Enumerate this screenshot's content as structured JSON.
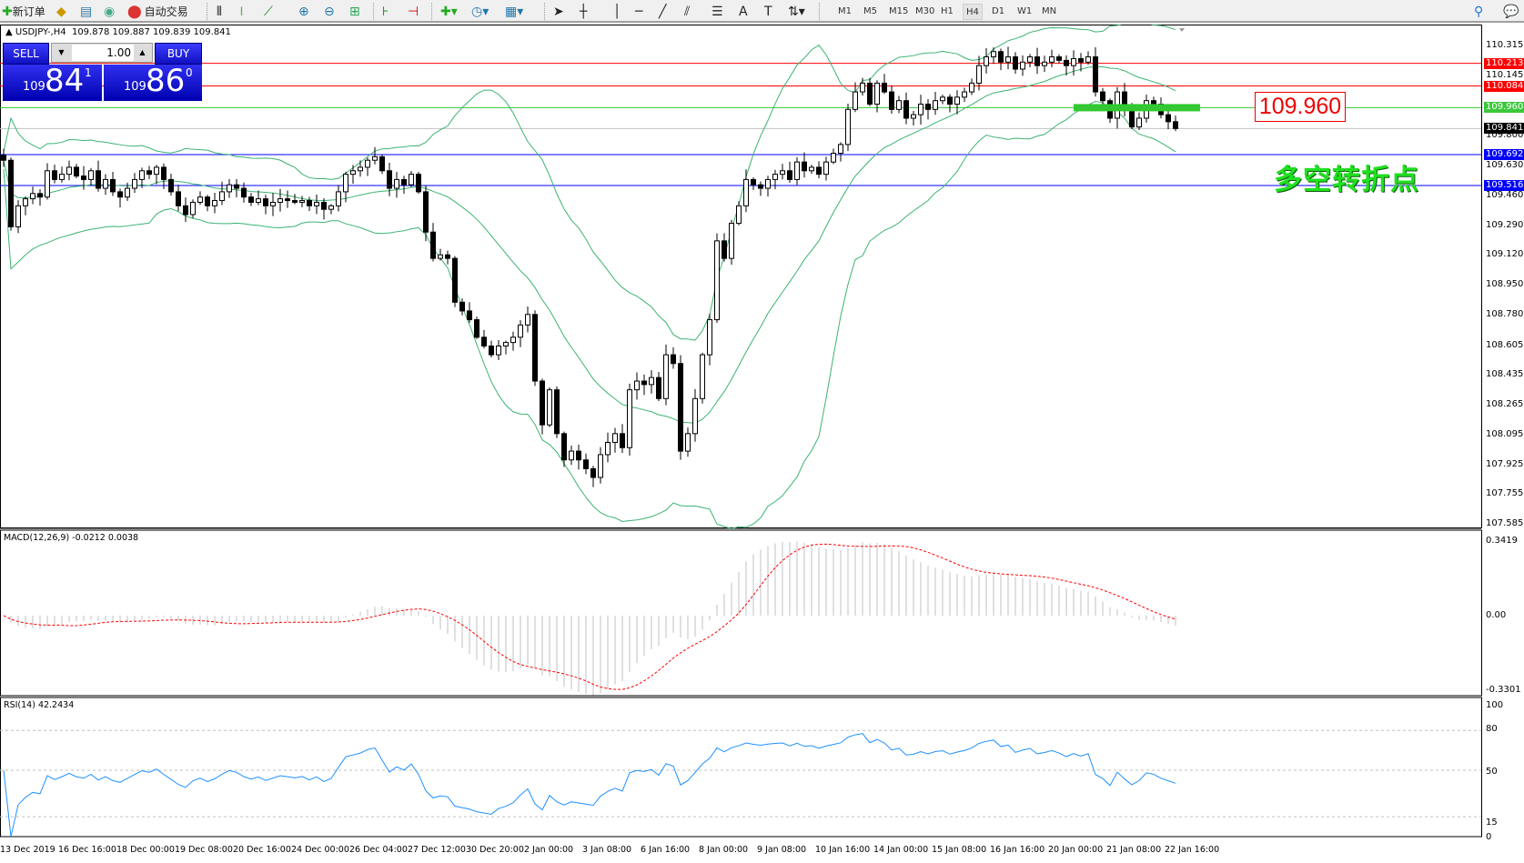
{
  "toolbar": {
    "new_order": "新订单",
    "auto_trading": "自动交易",
    "icons": [
      "new-order-icon",
      "market-watch-icon",
      "data-window-icon",
      "signals-icon",
      "auto-trading-icon",
      "bar-chart-icon",
      "candlestick-icon",
      "line-chart-icon",
      "zoom-in-icon",
      "zoom-out-icon",
      "tile-windows-icon",
      "chart-shift-icon",
      "autoscroll-icon",
      "indicators-icon",
      "periods-icon",
      "templates-icon",
      "cursor-icon",
      "crosshair-icon",
      "vertical-line-icon",
      "horizontal-line-icon",
      "trendline-icon",
      "equidistant-channel-icon",
      "fibonacci-icon",
      "text-icon",
      "text-label-icon",
      "shapes-icon",
      "search-icon",
      "chat-icon"
    ],
    "timeframes": [
      "M1",
      "M5",
      "M15",
      "M30",
      "H1",
      "H4",
      "D1",
      "W1",
      "MN"
    ],
    "active_timeframe": "H4"
  },
  "header": {
    "symbol": "USDJPY-,H4",
    "ohlc": "109.878 109.887 109.839 109.841"
  },
  "trade_panel": {
    "sell_label": "SELL",
    "buy_label": "BUY",
    "lot": "1.00",
    "sell_big": "109",
    "sell_main": "84",
    "sell_sup": "1",
    "buy_big": "109",
    "buy_main": "86",
    "buy_sup": "0"
  },
  "colors": {
    "up_band": "#3cb371",
    "red_line": "#ff0000",
    "green_line": "#32c832",
    "blue_line": "#0000ff",
    "bid_line": "#c0c0c0",
    "macd_signal": "#ff0000",
    "macd_hist": "#c0c0c0",
    "rsi": "#1e90ff",
    "annotation_green": "#20e020"
  },
  "price_axis": {
    "ticks": [
      "110.315",
      "110.145",
      "109.800",
      "109.630",
      "109.460",
      "109.290",
      "109.120",
      "108.950",
      "108.780",
      "108.605",
      "108.435",
      "108.265",
      "108.095",
      "107.925",
      "107.755",
      "107.585"
    ]
  },
  "levels": [
    {
      "price": "110.213",
      "color": "#ff0000"
    },
    {
      "price": "110.084",
      "color": "#ff0000"
    },
    {
      "price": "109.960",
      "color": "#32c832"
    },
    {
      "price": "109.841",
      "color": "#000000"
    },
    {
      "price": "109.692",
      "color": "#0000ff"
    },
    {
      "price": "109.516",
      "color": "#0000ff"
    }
  ],
  "annotation": {
    "price_box": "109.960",
    "text": "多空转折点"
  },
  "macd": {
    "label": "MACD(12,26,9) -0.0212 0.0038",
    "ticks": [
      "0.3419",
      "0.00",
      "-0.3301"
    ]
  },
  "rsi": {
    "label": "RSI(14) 42.2434",
    "ticks": [
      "100",
      "80",
      "50",
      "15",
      "0"
    ]
  },
  "time_axis": [
    "13 Dec 2019",
    "16 Dec 16:00",
    "18 Dec 00:00",
    "19 Dec 08:00",
    "20 Dec 16:00",
    "24 Dec 00:00",
    "26 Dec 04:00",
    "27 Dec 12:00",
    "30 Dec 20:00",
    "2 Jan 00:00",
    "3 Jan 08:00",
    "6 Jan 16:00",
    "8 Jan 00:00",
    "9 Jan 08:00",
    "10 Jan 16:00",
    "14 Jan 00:00",
    "15 Jan 08:00",
    "16 Jan 16:00",
    "20 Jan 00:00",
    "21 Jan 08:00",
    "22 Jan 16:00"
  ],
  "chart_data": {
    "type": "candlestick",
    "symbol": "USDJPY-",
    "timeframe": "H4",
    "ylim": [
      107.585,
      110.315
    ],
    "closes": [
      109.66,
      109.28,
      109.4,
      109.44,
      109.47,
      109.45,
      109.6,
      109.55,
      109.58,
      109.62,
      109.57,
      109.55,
      109.6,
      109.5,
      109.55,
      109.48,
      109.45,
      109.5,
      109.55,
      109.6,
      109.58,
      109.62,
      109.55,
      109.48,
      109.4,
      109.35,
      109.42,
      109.45,
      109.4,
      109.43,
      109.48,
      109.52,
      109.5,
      109.45,
      109.42,
      109.44,
      109.4,
      109.42,
      109.44,
      109.43,
      109.42,
      109.43,
      109.4,
      109.42,
      109.38,
      109.4,
      109.48,
      109.58,
      109.6,
      109.62,
      109.66,
      109.68,
      109.6,
      109.5,
      109.55,
      109.52,
      109.58,
      109.48,
      109.25,
      109.1,
      109.12,
      109.1,
      108.85,
      108.8,
      108.75,
      108.65,
      108.6,
      108.55,
      108.6,
      108.62,
      108.65,
      108.72,
      108.78,
      108.4,
      108.15,
      108.35,
      108.1,
      107.95,
      108.0,
      107.95,
      107.9,
      107.85,
      107.98,
      108.05,
      108.1,
      108.02,
      108.35,
      108.4,
      108.38,
      108.42,
      108.3,
      108.55,
      108.5,
      108.0,
      108.1,
      108.3,
      108.55,
      108.75,
      109.2,
      109.1,
      109.3,
      109.4,
      109.55,
      109.52,
      109.5,
      109.55,
      109.58,
      109.6,
      109.55,
      109.65,
      109.6,
      109.62,
      109.58,
      109.65,
      109.7,
      109.75,
      109.95,
      110.05,
      110.1,
      109.98,
      110.1,
      110.05,
      109.95,
      110.0,
      109.9,
      109.92,
      109.98,
      109.95,
      110.0,
      110.02,
      109.98,
      110.02,
      110.05,
      110.1,
      110.2,
      110.25,
      110.28,
      110.22,
      110.25,
      110.18,
      110.22,
      110.25,
      110.2,
      110.22,
      110.25,
      110.23,
      110.2,
      110.24,
      110.22,
      110.25,
      110.05,
      110.0,
      109.9,
      110.05,
      109.95,
      109.85,
      109.9,
      110.0,
      109.98,
      109.92,
      109.88,
      109.841
    ],
    "indicators": [
      "Bollinger Bands",
      "MACD(12,26,9)",
      "RSI(14)"
    ],
    "macd_ylim": [
      -0.3301,
      0.3419
    ],
    "rsi_ylim": [
      0,
      100
    ],
    "rsi_levels": [
      80,
      50,
      15
    ]
  }
}
